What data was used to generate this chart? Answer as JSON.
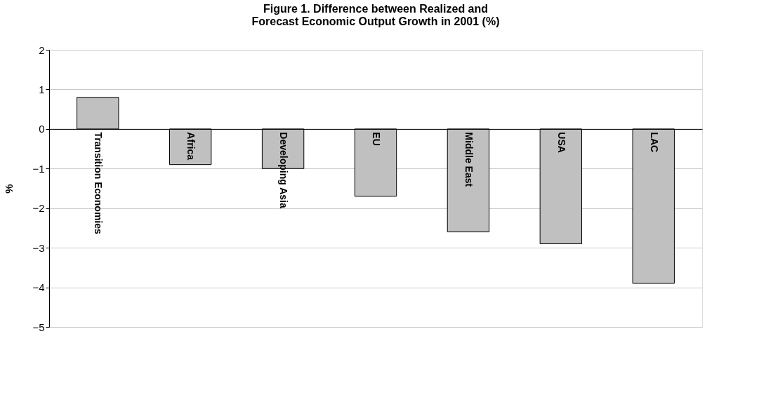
{
  "chart_data": {
    "type": "bar",
    "title": "Figure 1. Difference between Realized and Forecast Economic Output Growth in 2001 (%)",
    "ylabel": "%",
    "categories": [
      "Transition Economies",
      "Africa",
      "Developing Asia",
      "EU",
      "Middle East",
      "USA",
      "LAC"
    ],
    "values": [
      0.8,
      -0.9,
      -1.0,
      -1.7,
      -2.6,
      -2.9,
      -3.9
    ],
    "color": "#c0c0c0",
    "ylim": [
      -5,
      2
    ],
    "yticks": [
      -5,
      -4,
      -3,
      -2,
      -1,
      0,
      1,
      2
    ],
    "grid": "y"
  }
}
